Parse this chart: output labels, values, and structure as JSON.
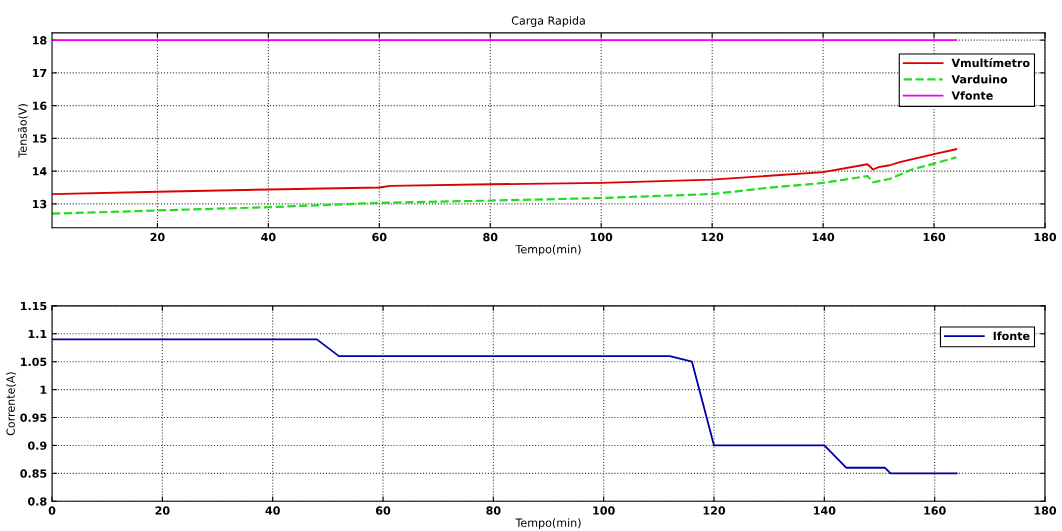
{
  "chart_data": [
    {
      "type": "line",
      "title": "Carga Rapida",
      "xlabel": "Tempo(min)",
      "ylabel": "Tensão(V)",
      "xlim": [
        1,
        180
      ],
      "xticks": [
        20,
        40,
        60,
        80,
        100,
        120,
        140,
        160,
        180
      ],
      "ylim": [
        12.27,
        18.22
      ],
      "yticks": [
        13,
        14,
        15,
        16,
        17,
        18
      ],
      "grid": true,
      "legend": "top right",
      "series": [
        {
          "name": "Vmultímetro",
          "color": "#dd0000",
          "line_style": "solid",
          "x": [
            1,
            20,
            40,
            60,
            62,
            80,
            100,
            120,
            140,
            148,
            149,
            150,
            152,
            154,
            160,
            164
          ],
          "values": [
            13.3,
            13.37,
            13.44,
            13.5,
            13.55,
            13.6,
            13.64,
            13.74,
            13.97,
            14.21,
            14.05,
            14.12,
            14.18,
            14.28,
            14.52,
            14.67
          ]
        },
        {
          "name": "Varduino",
          "color": "#22dd22",
          "line_style": "dashed",
          "x": [
            1,
            20,
            40,
            60,
            80,
            100,
            120,
            130,
            140,
            148,
            149,
            152,
            156,
            160,
            164
          ],
          "values": [
            12.7,
            12.8,
            12.9,
            13.03,
            13.1,
            13.18,
            13.3,
            13.49,
            13.64,
            13.85,
            13.66,
            13.76,
            14.05,
            14.23,
            14.42
          ]
        },
        {
          "name": "Vfonte",
          "color": "#ee00ee",
          "line_style": "solid",
          "x": [
            1,
            164
          ],
          "values": [
            18,
            18
          ]
        }
      ]
    },
    {
      "type": "line",
      "xlabel": "Tempo(min)",
      "ylabel": "Corrente(A)",
      "xlim": [
        0,
        180
      ],
      "xticks": [
        0,
        20,
        40,
        60,
        80,
        100,
        120,
        140,
        160,
        180
      ],
      "ylim": [
        0.8,
        1.15
      ],
      "yticks": [
        0.8,
        0.85,
        0.9,
        0.95,
        1,
        1.05,
        1.1,
        1.15
      ],
      "grid": true,
      "legend": "top right",
      "series": [
        {
          "name": "Ifonte",
          "color": "#0000aa",
          "line_style": "solid",
          "x": [
            0,
            48,
            52,
            112,
            116,
            120,
            140,
            144,
            151,
            152,
            164
          ],
          "values": [
            1.09,
            1.09,
            1.06,
            1.06,
            1.05,
            0.9,
            0.9,
            0.86,
            0.86,
            0.85,
            0.85
          ]
        }
      ]
    }
  ]
}
